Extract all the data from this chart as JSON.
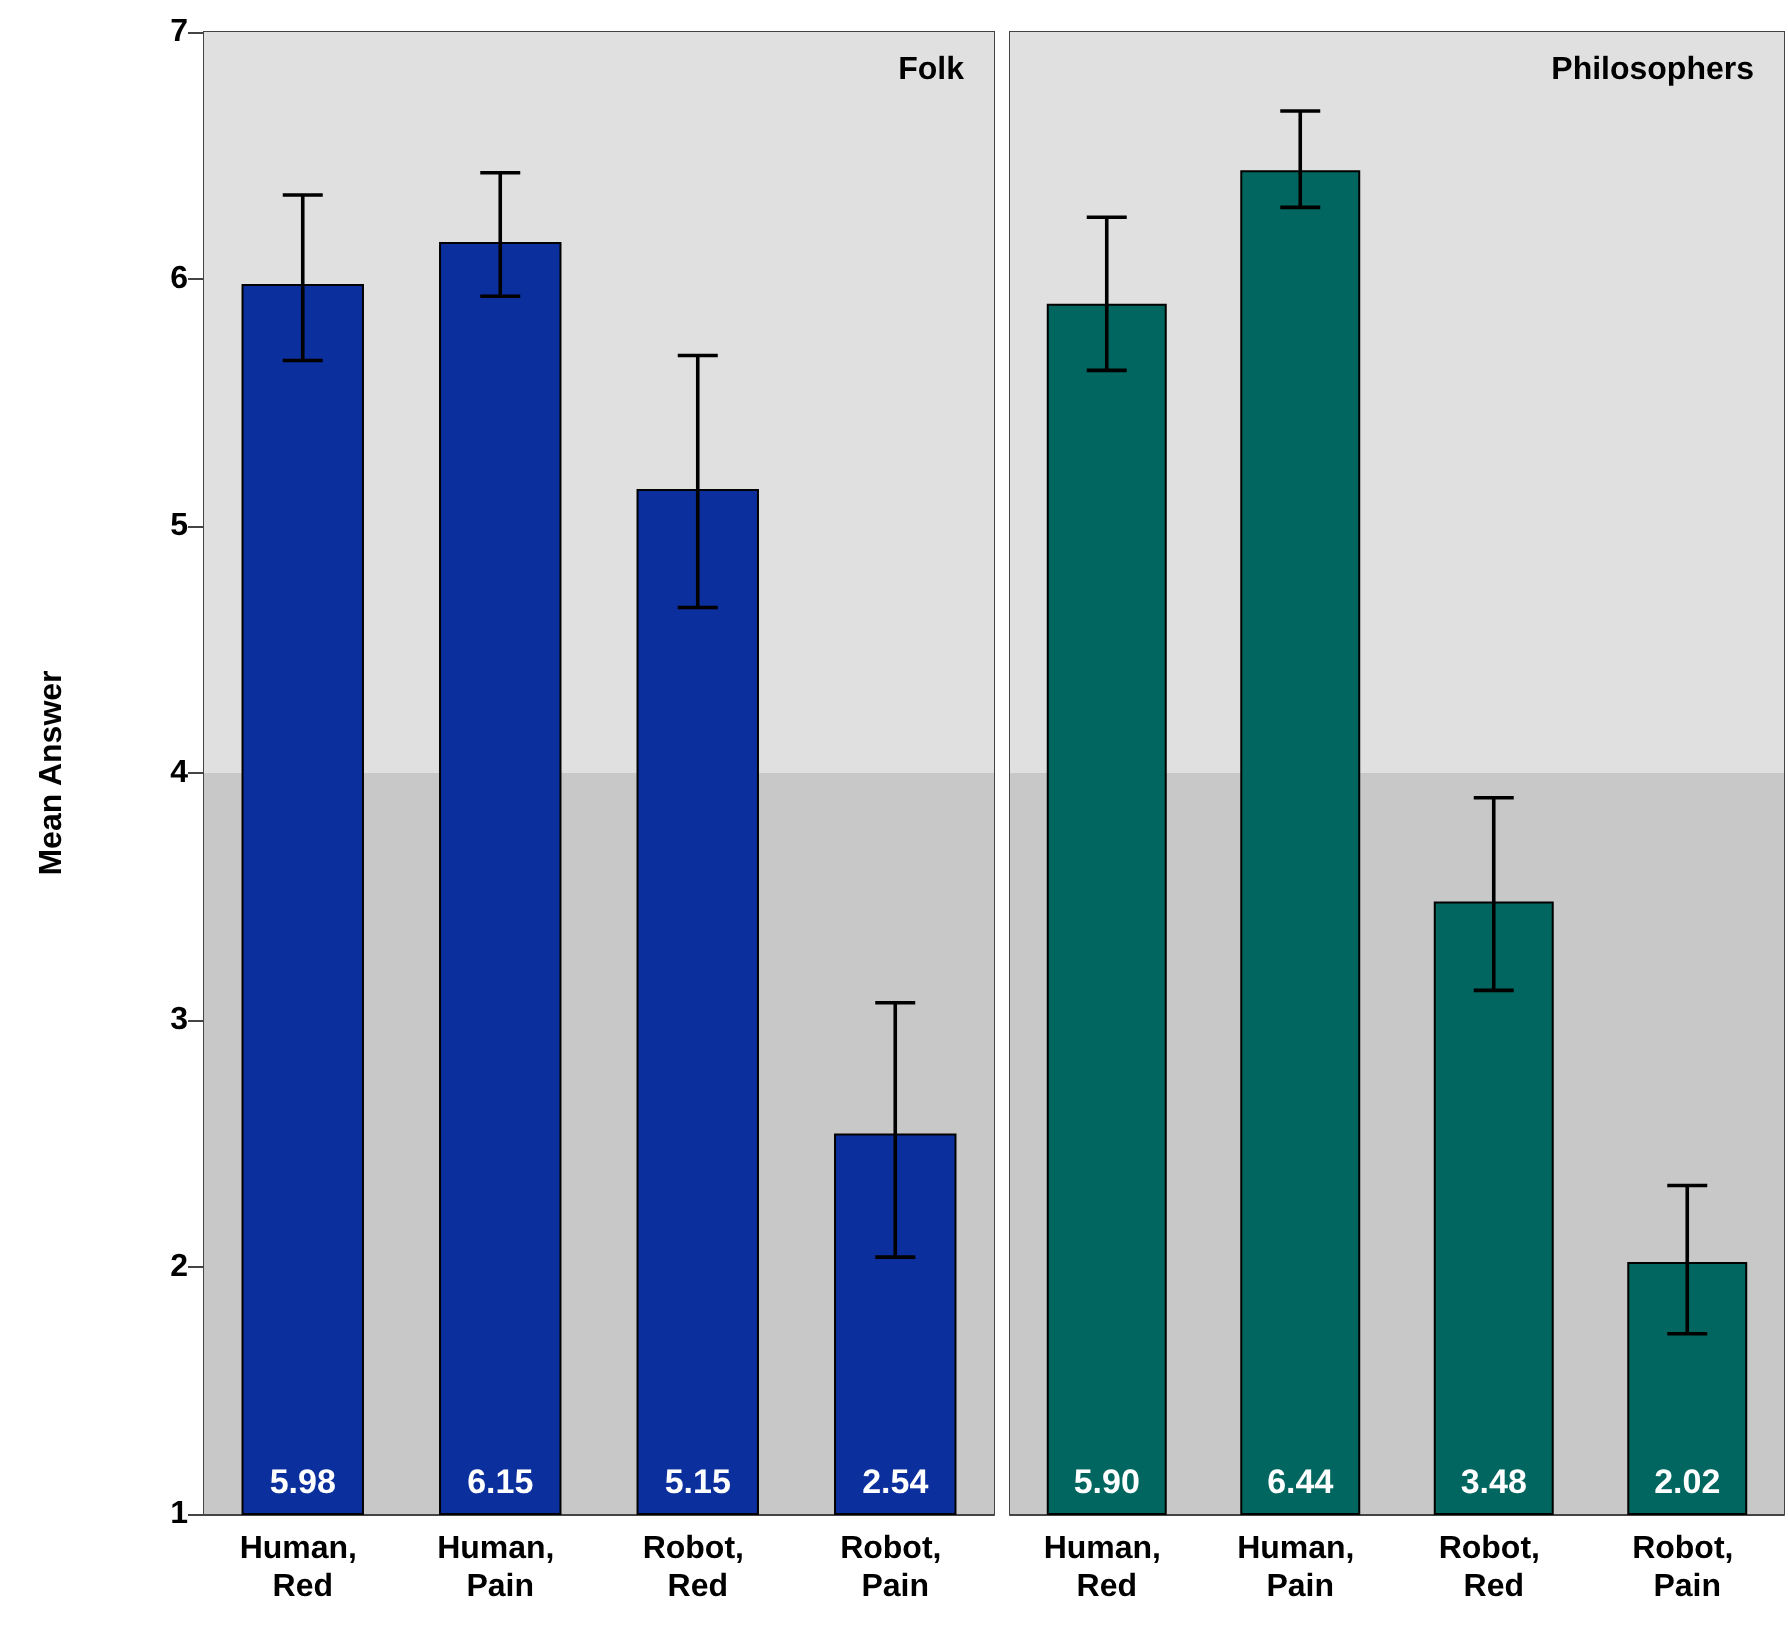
{
  "chart_data": [
    {
      "type": "bar",
      "title": "Folk",
      "ylabel": "Mean Answer",
      "categories": [
        "Human, Red",
        "Human, Pain",
        "Robot, Red",
        "Robot, Pain"
      ],
      "values": [
        5.98,
        6.15,
        5.15,
        2.54
      ],
      "color": "#0b2f9c",
      "errors": [
        [
          5.67,
          6.34
        ],
        [
          5.93,
          6.43
        ],
        [
          4.67,
          5.69
        ],
        [
          2.04,
          3.07
        ]
      ],
      "value_labels": [
        "5.98",
        "6.15",
        "5.15",
        "2.54"
      ],
      "ylim": [
        1,
        7
      ],
      "yticks": [
        1,
        2,
        3,
        4,
        5,
        6,
        7
      ],
      "bands": [
        {
          "axis": "y",
          "from": 1,
          "to": 4,
          "color": "#c8c8c8"
        },
        {
          "axis": "y",
          "from": 4,
          "to": 7,
          "color": "#e0e0e0"
        }
      ]
    },
    {
      "type": "bar",
      "title": "Philosophers",
      "categories": [
        "Human, Red",
        "Human, Pain",
        "Robot, Red",
        "Robot, Pain"
      ],
      "values": [
        5.9,
        6.44,
        3.48,
        2.02
      ],
      "color": "#00665f",
      "errors": [
        [
          5.63,
          6.25
        ],
        [
          6.29,
          6.68
        ],
        [
          3.12,
          3.9
        ],
        [
          1.73,
          2.33
        ]
      ],
      "value_labels": [
        "5.90",
        "6.44",
        "3.48",
        "2.02"
      ],
      "ylim": [
        1,
        7
      ],
      "yticks": [
        1,
        2,
        3,
        4,
        5,
        6,
        7
      ],
      "tick_labels": "x",
      "bands": [
        {
          "axis": "y",
          "from": 1,
          "to": 4,
          "color": "#c8c8c8"
        },
        {
          "axis": "y",
          "from": 4,
          "to": 7,
          "color": "#e0e0e0"
        }
      ]
    }
  ]
}
